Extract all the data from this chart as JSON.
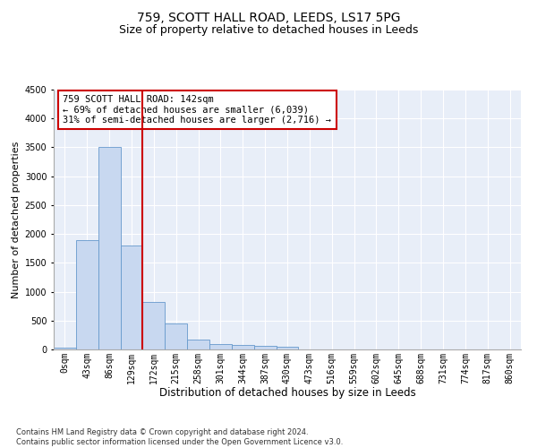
{
  "title1": "759, SCOTT HALL ROAD, LEEDS, LS17 5PG",
  "title2": "Size of property relative to detached houses in Leeds",
  "xlabel": "Distribution of detached houses by size in Leeds",
  "ylabel": "Number of detached properties",
  "bar_labels": [
    "0sqm",
    "43sqm",
    "86sqm",
    "129sqm",
    "172sqm",
    "215sqm",
    "258sqm",
    "301sqm",
    "344sqm",
    "387sqm",
    "430sqm",
    "473sqm",
    "516sqm",
    "559sqm",
    "602sqm",
    "645sqm",
    "688sqm",
    "731sqm",
    "774sqm",
    "817sqm",
    "860sqm"
  ],
  "bar_values": [
    30,
    1900,
    3500,
    1800,
    830,
    450,
    165,
    100,
    70,
    55,
    45,
    0,
    0,
    0,
    0,
    0,
    0,
    0,
    0,
    0,
    0
  ],
  "bar_color": "#c8d8f0",
  "bar_edge_color": "#6699cc",
  "vline_color": "#cc0000",
  "annotation_line1": "759 SCOTT HALL ROAD: 142sqm",
  "annotation_line2": "← 69% of detached houses are smaller (6,039)",
  "annotation_line3": "31% of semi-detached houses are larger (2,716) →",
  "annotation_box_color": "#ffffff",
  "annotation_box_edge": "#cc0000",
  "ylim": [
    0,
    4500
  ],
  "yticks": [
    0,
    500,
    1000,
    1500,
    2000,
    2500,
    3000,
    3500,
    4000,
    4500
  ],
  "footer_line1": "Contains HM Land Registry data © Crown copyright and database right 2024.",
  "footer_line2": "Contains public sector information licensed under the Open Government Licence v3.0.",
  "bg_color": "#ffffff",
  "plot_bg_color": "#e8eef8",
  "grid_color": "#ffffff",
  "title1_fontsize": 10,
  "title2_fontsize": 9,
  "xlabel_fontsize": 8.5,
  "ylabel_fontsize": 8,
  "tick_fontsize": 7,
  "annotation_fontsize": 7.5,
  "footer_fontsize": 6
}
